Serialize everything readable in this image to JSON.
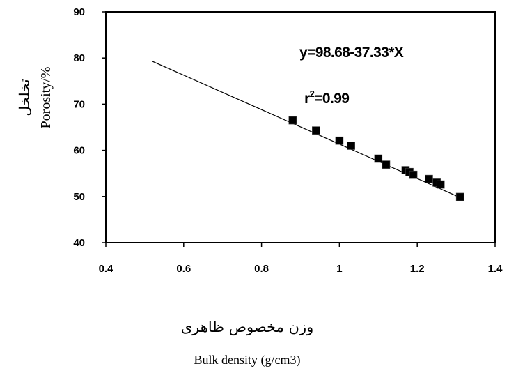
{
  "chart_data": {
    "type": "scatter",
    "xlim": [
      0.4,
      1.4
    ],
    "ylim": [
      40,
      90
    ],
    "x_ticks": [
      "0.4",
      "0.6",
      "0.8",
      "1",
      "1.2",
      "1.4"
    ],
    "y_ticks": [
      "40",
      "50",
      "60",
      "70",
      "80",
      "90"
    ],
    "xlabel_fa": "وزن مخصوص ظاهری",
    "xlabel": "Bulk density (g/cm3)",
    "ylabel_fa": "تخلخل",
    "ylabel": "Porosity/%",
    "equation": "y=98.68-37.33*X",
    "r2_base": "r",
    "r2_sup": "2",
    "r2_value": "=0.99",
    "fit_line": {
      "intercept": 98.68,
      "slope": -37.33,
      "x_range": [
        0.52,
        1.31
      ]
    },
    "points": [
      {
        "x": 0.88,
        "y": 66.5
      },
      {
        "x": 0.94,
        "y": 64.3
      },
      {
        "x": 1.0,
        "y": 62.1
      },
      {
        "x": 1.03,
        "y": 61.0
      },
      {
        "x": 1.1,
        "y": 58.2
      },
      {
        "x": 1.12,
        "y": 56.9
      },
      {
        "x": 1.17,
        "y": 55.7
      },
      {
        "x": 1.18,
        "y": 55.3
      },
      {
        "x": 1.19,
        "y": 54.7
      },
      {
        "x": 1.23,
        "y": 53.8
      },
      {
        "x": 1.25,
        "y": 53.0
      },
      {
        "x": 1.26,
        "y": 52.6
      },
      {
        "x": 1.31,
        "y": 49.9
      }
    ],
    "grid": false,
    "marker": "square",
    "marker_color": "#000000"
  }
}
